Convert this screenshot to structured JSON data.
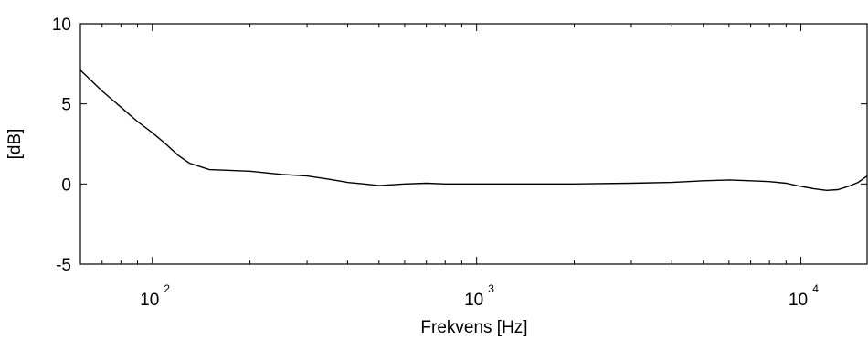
{
  "chart_data": {
    "type": "line",
    "xlabel": "Frekvens [Hz]",
    "ylabel": "[dB]",
    "x_scale": "log",
    "xlim": [
      60,
      16000
    ],
    "ylim": [
      -5,
      10
    ],
    "grid": false,
    "y_ticks": [
      {
        "value": 10,
        "label": "10"
      },
      {
        "value": 5,
        "label": "5"
      },
      {
        "value": 0,
        "label": "0"
      },
      {
        "value": -5,
        "label": "-5"
      }
    ],
    "x_ticks": [
      {
        "value": 100,
        "base": "10",
        "exp": "2"
      },
      {
        "value": 1000,
        "base": "10",
        "exp": "3"
      },
      {
        "value": 10000,
        "base": "10",
        "exp": "4"
      }
    ],
    "series": [
      {
        "color": "#000000",
        "x": [
          60,
          70,
          80,
          90,
          100,
          110,
          120,
          130,
          150,
          200,
          250,
          300,
          350,
          400,
          450,
          500,
          600,
          700,
          800,
          1000,
          1500,
          2000,
          3000,
          4000,
          5000,
          6000,
          7000,
          8000,
          9000,
          10000,
          11000,
          12000,
          13000,
          14000,
          15000,
          16000
        ],
        "y": [
          7.1,
          5.8,
          4.8,
          3.9,
          3.2,
          2.5,
          1.8,
          1.3,
          0.9,
          0.8,
          0.6,
          0.5,
          0.3,
          0.1,
          0.0,
          -0.1,
          0.0,
          0.05,
          0.0,
          0.0,
          0.0,
          0.0,
          0.05,
          0.1,
          0.2,
          0.25,
          0.2,
          0.15,
          0.05,
          -0.15,
          -0.3,
          -0.4,
          -0.35,
          -0.15,
          0.1,
          0.5
        ]
      }
    ]
  }
}
